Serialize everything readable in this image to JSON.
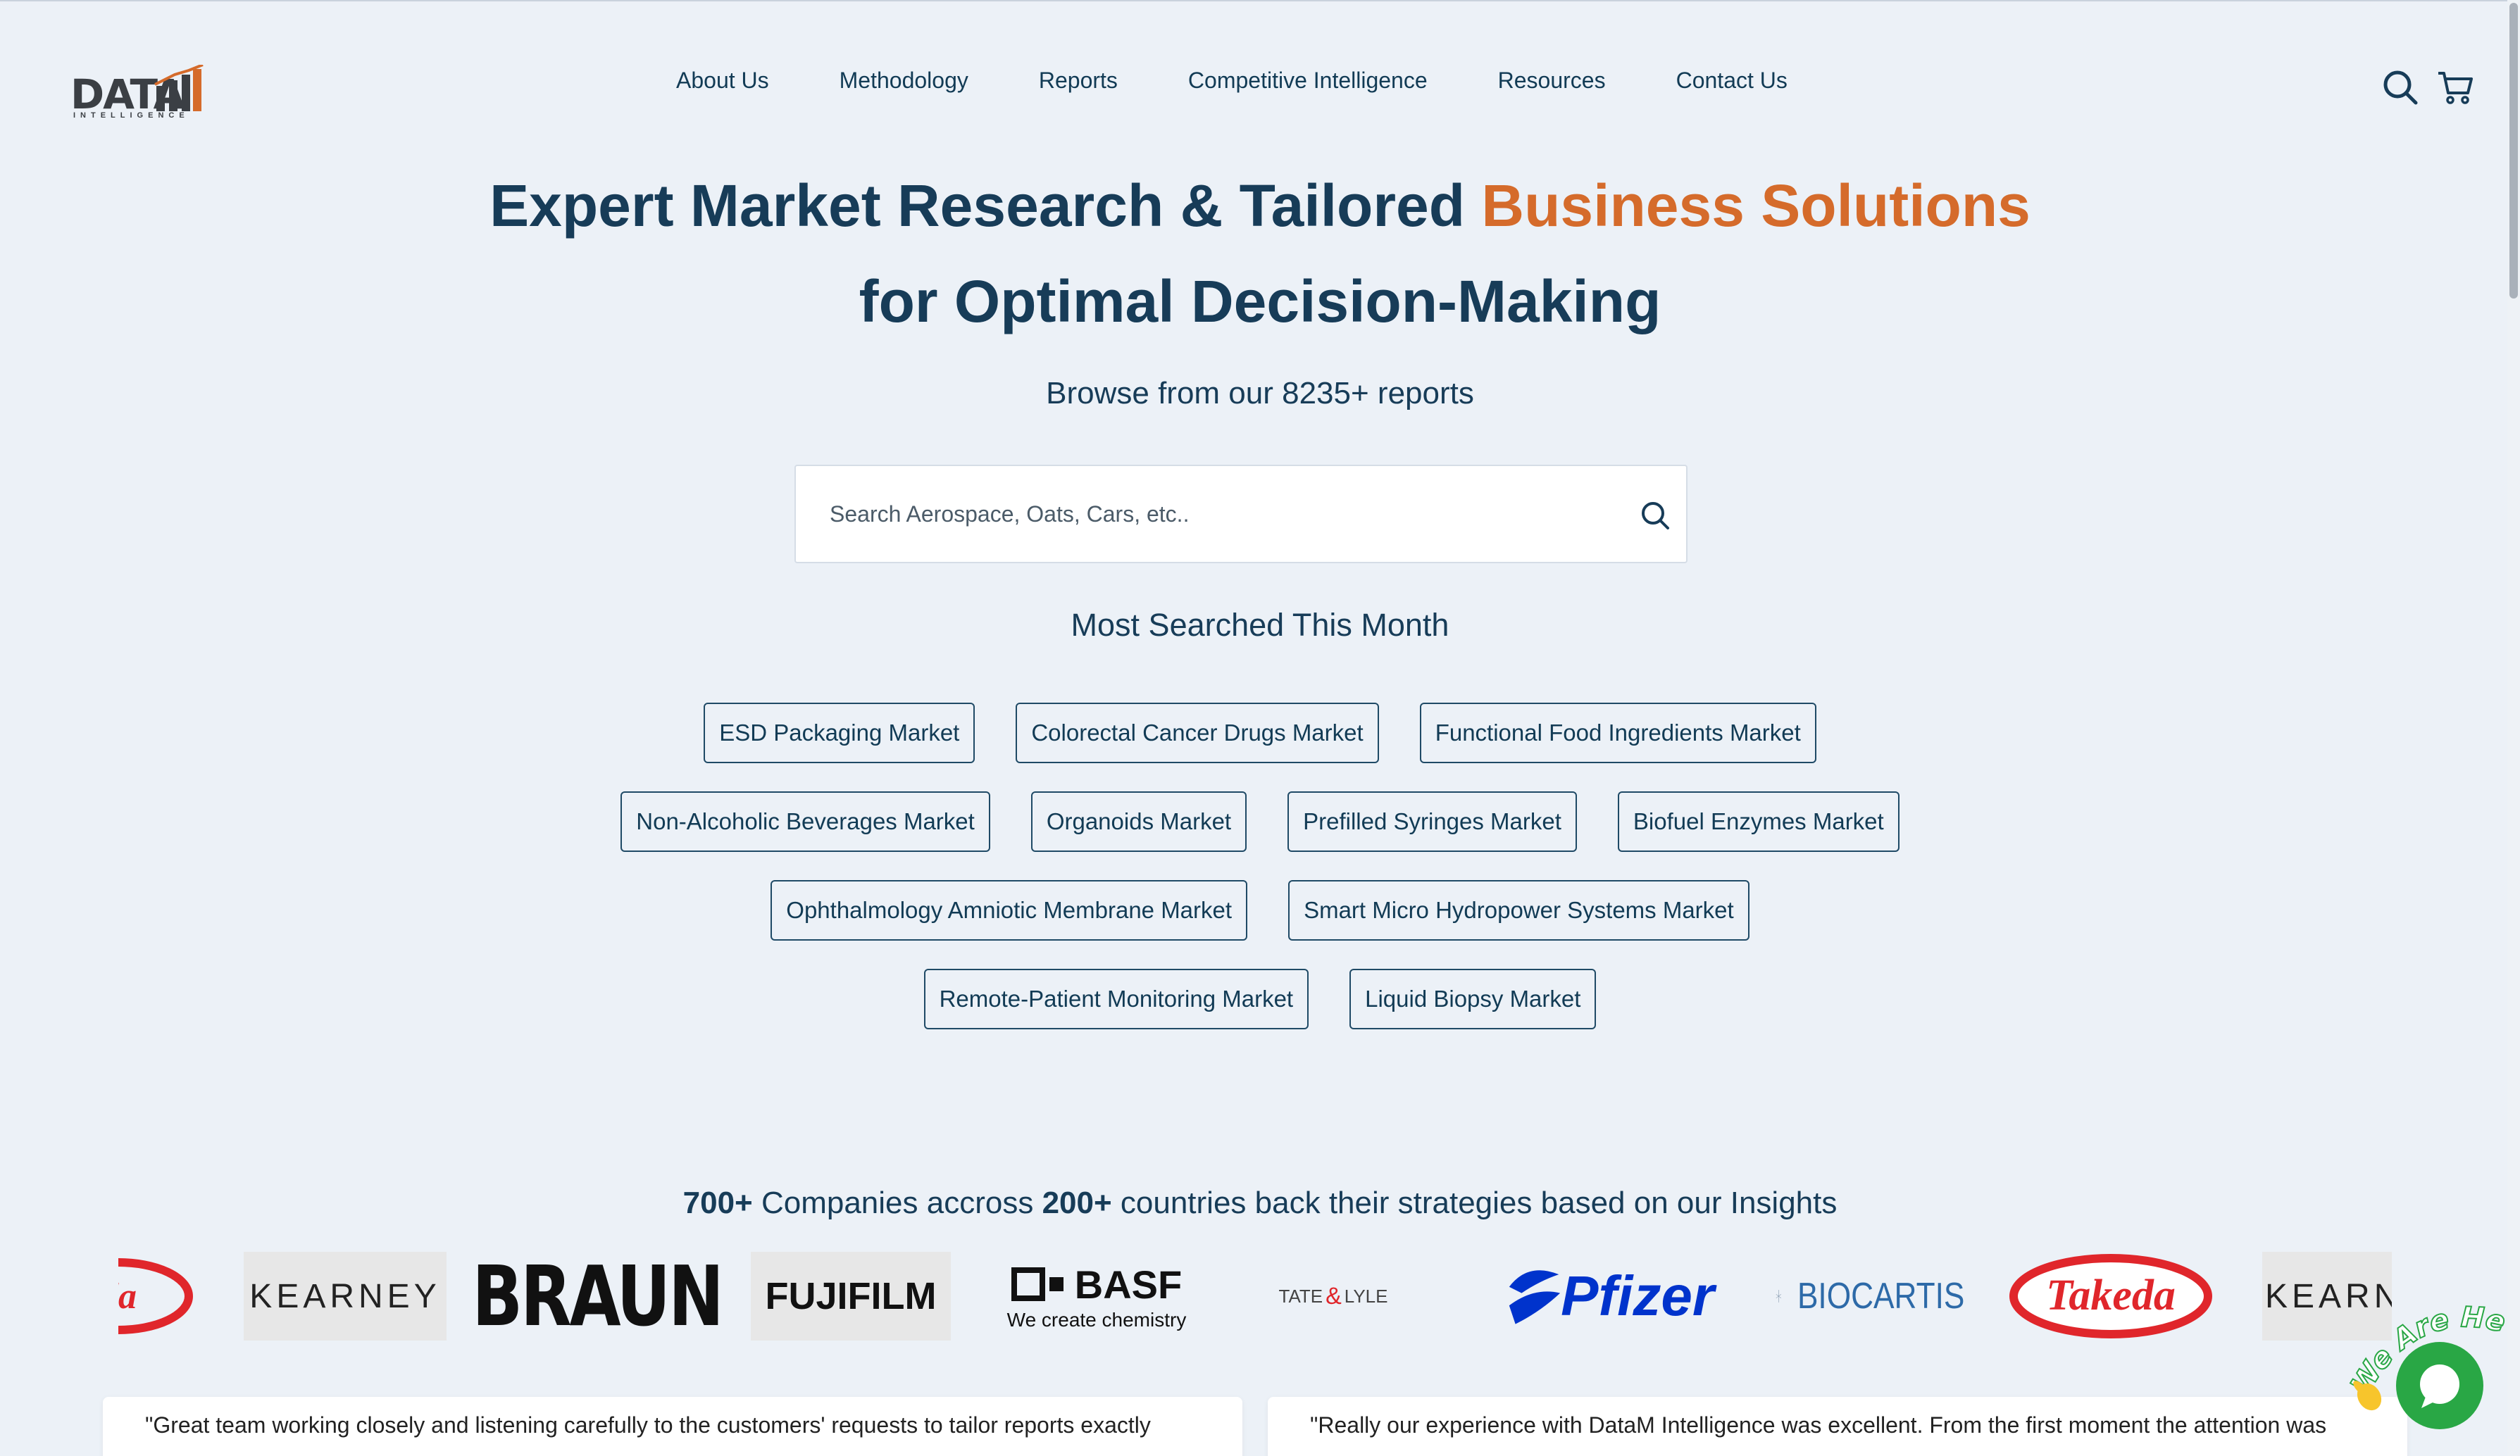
{
  "brand": {
    "logo_text": "DATA",
    "logo_subtext": "INTELLIGENCE"
  },
  "nav": {
    "items": [
      "About Us",
      "Methodology",
      "Reports",
      "Competitive Intelligence",
      "Resources",
      "Contact Us"
    ],
    "search_icon": "search-icon",
    "cart_icon": "cart-icon"
  },
  "hero": {
    "title_part1": "Expert Market Research & Tailored ",
    "title_accent": "Business Solutions",
    "title_line2": "for Optimal Decision-Making",
    "browse": "Browse from our 8235+ reports"
  },
  "search": {
    "placeholder": "Search Aerospace, Oats, Cars, etc..",
    "value": ""
  },
  "most_searched": {
    "heading": "Most Searched This Month",
    "rows": [
      [
        "ESD Packaging Market",
        "Colorectal Cancer Drugs Market",
        "Functional Food Ingredients Market"
      ],
      [
        "Non-Alcoholic Beverages Market",
        "Organoids Market",
        "Prefilled Syringes Market",
        "Biofuel Enzymes Market"
      ],
      [
        "Ophthalmology Amniotic Membrane Market",
        "Smart Micro Hydropower Systems Market"
      ],
      [
        "Remote-Patient Monitoring Market",
        "Liquid Biopsy Market"
      ]
    ]
  },
  "companies": {
    "count1": "700+",
    "text1": " Companies accross ",
    "count2": "200+",
    "text2": " countries back their strategies based on our Insights"
  },
  "client_logos": {
    "takeda_partial": "da",
    "kearney": "KEARNEY",
    "braun": "BRAUN",
    "fujifilm": "FUJIFILM",
    "basf": "BASF",
    "basf_tagline": "We create chemistry",
    "tatelyle_tate": "TATE",
    "tatelyle_lyle": "LYLE",
    "pfizer": "Pfizer",
    "biocartis": "BIOCARTIS",
    "takeda": "Takeda",
    "kearney_partial": "KEARN"
  },
  "testimonials": [
    "\"Great team working closely and listening carefully to the customers' requests to tailor reports exactly",
    "\"Really our experience with DataM Intelligence was excellent. From the first moment the attention was"
  ],
  "chat": {
    "badge": "We Are Here!",
    "icon": "chat-bubble-icon"
  },
  "colors": {
    "accent": "#d56b2b",
    "primary": "#173c58",
    "chat": "#29a745",
    "background": "#ecf1f7"
  }
}
